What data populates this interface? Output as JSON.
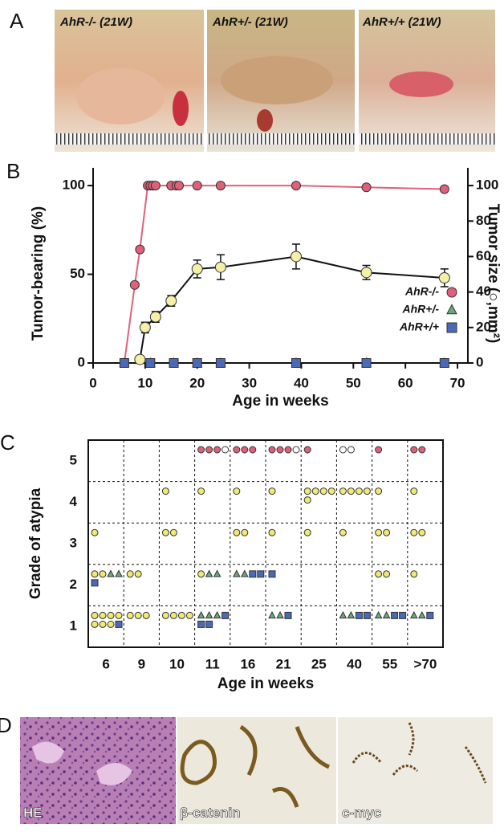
{
  "figure": {
    "panel_letters": [
      "A",
      "B",
      "C",
      "D"
    ],
    "photo_labels": [
      "AhR-/- (21W)",
      "AhR+/- (21W)",
      "AhR+/+ (21W)"
    ],
    "micrograph_labels": [
      "HE",
      "β-catenin",
      "c-myc"
    ]
  },
  "chart_data": [
    {
      "type": "line",
      "xlabel": "Age in weeks",
      "ylabel": "Tumor-bearing (%)",
      "y2label": "Tumor size (○,mm²)",
      "xlim": [
        0,
        72
      ],
      "xticks": [
        0,
        10,
        20,
        30,
        40,
        50,
        60,
        70
      ],
      "ylim": [
        0,
        110
      ],
      "yticks": [
        0,
        50,
        100
      ],
      "y2lim": [
        0,
        110
      ],
      "y2ticks": [
        0,
        20,
        40,
        60,
        80,
        100
      ],
      "legend": "lower right",
      "series": [
        {
          "name": "AhR-/-",
          "color": "#e0607a",
          "marker": "circle",
          "line": true,
          "x": [
            6,
            8,
            9,
            10.5,
            11,
            11.5,
            12,
            15,
            16,
            16.5,
            20,
            24.5,
            39,
            52.5,
            67.5
          ],
          "values": [
            0,
            44,
            64,
            100,
            100,
            100,
            100,
            100,
            100,
            100,
            100,
            100,
            100,
            99,
            98
          ]
        },
        {
          "axis": "y2",
          "color": "#f4f0a8",
          "line_color": "#111",
          "marker": "circle",
          "line": true,
          "x": [
            9,
            10,
            12,
            15,
            20,
            24.5,
            39,
            52.5,
            67.5
          ],
          "values": [
            2,
            20,
            26,
            35,
            53,
            54,
            60,
            51,
            48
          ],
          "errors": [
            0,
            3,
            3,
            3,
            5,
            7,
            7,
            4,
            5
          ]
        },
        {
          "name": "AhR+/-",
          "color": "#6aa87a",
          "marker": "triangle",
          "line": false,
          "x": [
            6,
            11,
            15.5,
            20,
            24.5,
            39,
            52.5,
            67.5
          ],
          "values": [
            0,
            0,
            0,
            0,
            0,
            0,
            0,
            0
          ]
        },
        {
          "name": "AhR+/+",
          "color": "#4a6ab8",
          "marker": "square",
          "line": false,
          "x": [
            6,
            11,
            15.5,
            20,
            24.5,
            39,
            52.5,
            67.5
          ],
          "values": [
            0,
            0,
            0,
            0,
            0,
            0,
            0,
            0
          ]
        }
      ]
    },
    {
      "type": "grid",
      "xlabel": "Age in weeks",
      "ylabel": "Grade of atypia",
      "categories": [
        "6",
        "9",
        "10",
        "11",
        "16",
        "21",
        "25",
        "40",
        "55",
        ">70"
      ],
      "rows": [
        "5",
        "4",
        "3",
        "2",
        "1"
      ],
      "series": [
        {
          "marker": "circle",
          "color": "#e0607a",
          "values": [
            [
              0,
              0,
              0,
              3,
              3,
              3,
              1,
              0,
              1,
              2
            ],
            [
              0,
              0,
              0,
              0,
              0,
              0,
              0,
              0,
              0,
              0
            ],
            [
              0,
              0,
              0,
              0,
              0,
              0,
              0,
              0,
              0,
              0
            ],
            [
              0,
              0,
              0,
              0,
              0,
              0,
              0,
              0,
              0,
              0
            ],
            [
              0,
              0,
              0,
              0,
              0,
              0,
              0,
              0,
              0,
              0
            ]
          ]
        },
        {
          "marker": "circle",
          "color": "#ffffff",
          "values": [
            [
              0,
              0,
              0,
              1,
              0,
              1,
              0,
              2,
              0,
              0
            ],
            [
              0,
              0,
              0,
              0,
              0,
              0,
              0,
              0,
              0,
              0
            ],
            [
              0,
              0,
              0,
              0,
              0,
              0,
              0,
              0,
              0,
              0
            ],
            [
              0,
              0,
              0,
              0,
              0,
              0,
              0,
              0,
              0,
              0
            ],
            [
              0,
              0,
              0,
              0,
              0,
              0,
              0,
              0,
              0,
              0
            ]
          ]
        },
        {
          "marker": "circle",
          "color": "#f0ea70",
          "values": [
            [
              0,
              0,
              0,
              0,
              0,
              0,
              0,
              0,
              0,
              0
            ],
            [
              0,
              0,
              1,
              1,
              1,
              1,
              5,
              4,
              1,
              1
            ],
            [
              1,
              0,
              2,
              0,
              2,
              1,
              1,
              1,
              2,
              2
            ],
            [
              2,
              2,
              0,
              1,
              0,
              0,
              0,
              0,
              2,
              1
            ],
            [
              7,
              3,
              4,
              0,
              0,
              0,
              0,
              0,
              0,
              0
            ]
          ]
        },
        {
          "marker": "triangle",
          "color": "#6aa87a",
          "values": [
            [
              0,
              0,
              0,
              0,
              0,
              0,
              0,
              0,
              0,
              0
            ],
            [
              0,
              0,
              0,
              0,
              0,
              0,
              0,
              0,
              0,
              0
            ],
            [
              0,
              0,
              0,
              0,
              0,
              0,
              0,
              0,
              0,
              0
            ],
            [
              2,
              0,
              0,
              2,
              2,
              0,
              0,
              0,
              0,
              0
            ],
            [
              0,
              0,
              0,
              3,
              0,
              2,
              0,
              2,
              2,
              2
            ]
          ]
        },
        {
          "marker": "square",
          "color": "#4a6ab8",
          "values": [
            [
              0,
              0,
              0,
              0,
              0,
              0,
              0,
              0,
              0,
              0
            ],
            [
              0,
              0,
              0,
              0,
              0,
              0,
              0,
              0,
              0,
              0
            ],
            [
              0,
              0,
              0,
              0,
              0,
              0,
              0,
              0,
              0,
              0
            ],
            [
              1,
              0,
              0,
              0,
              2,
              1,
              0,
              0,
              0,
              0
            ],
            [
              1,
              0,
              0,
              3,
              0,
              1,
              0,
              2,
              2,
              1
            ]
          ]
        }
      ]
    }
  ]
}
